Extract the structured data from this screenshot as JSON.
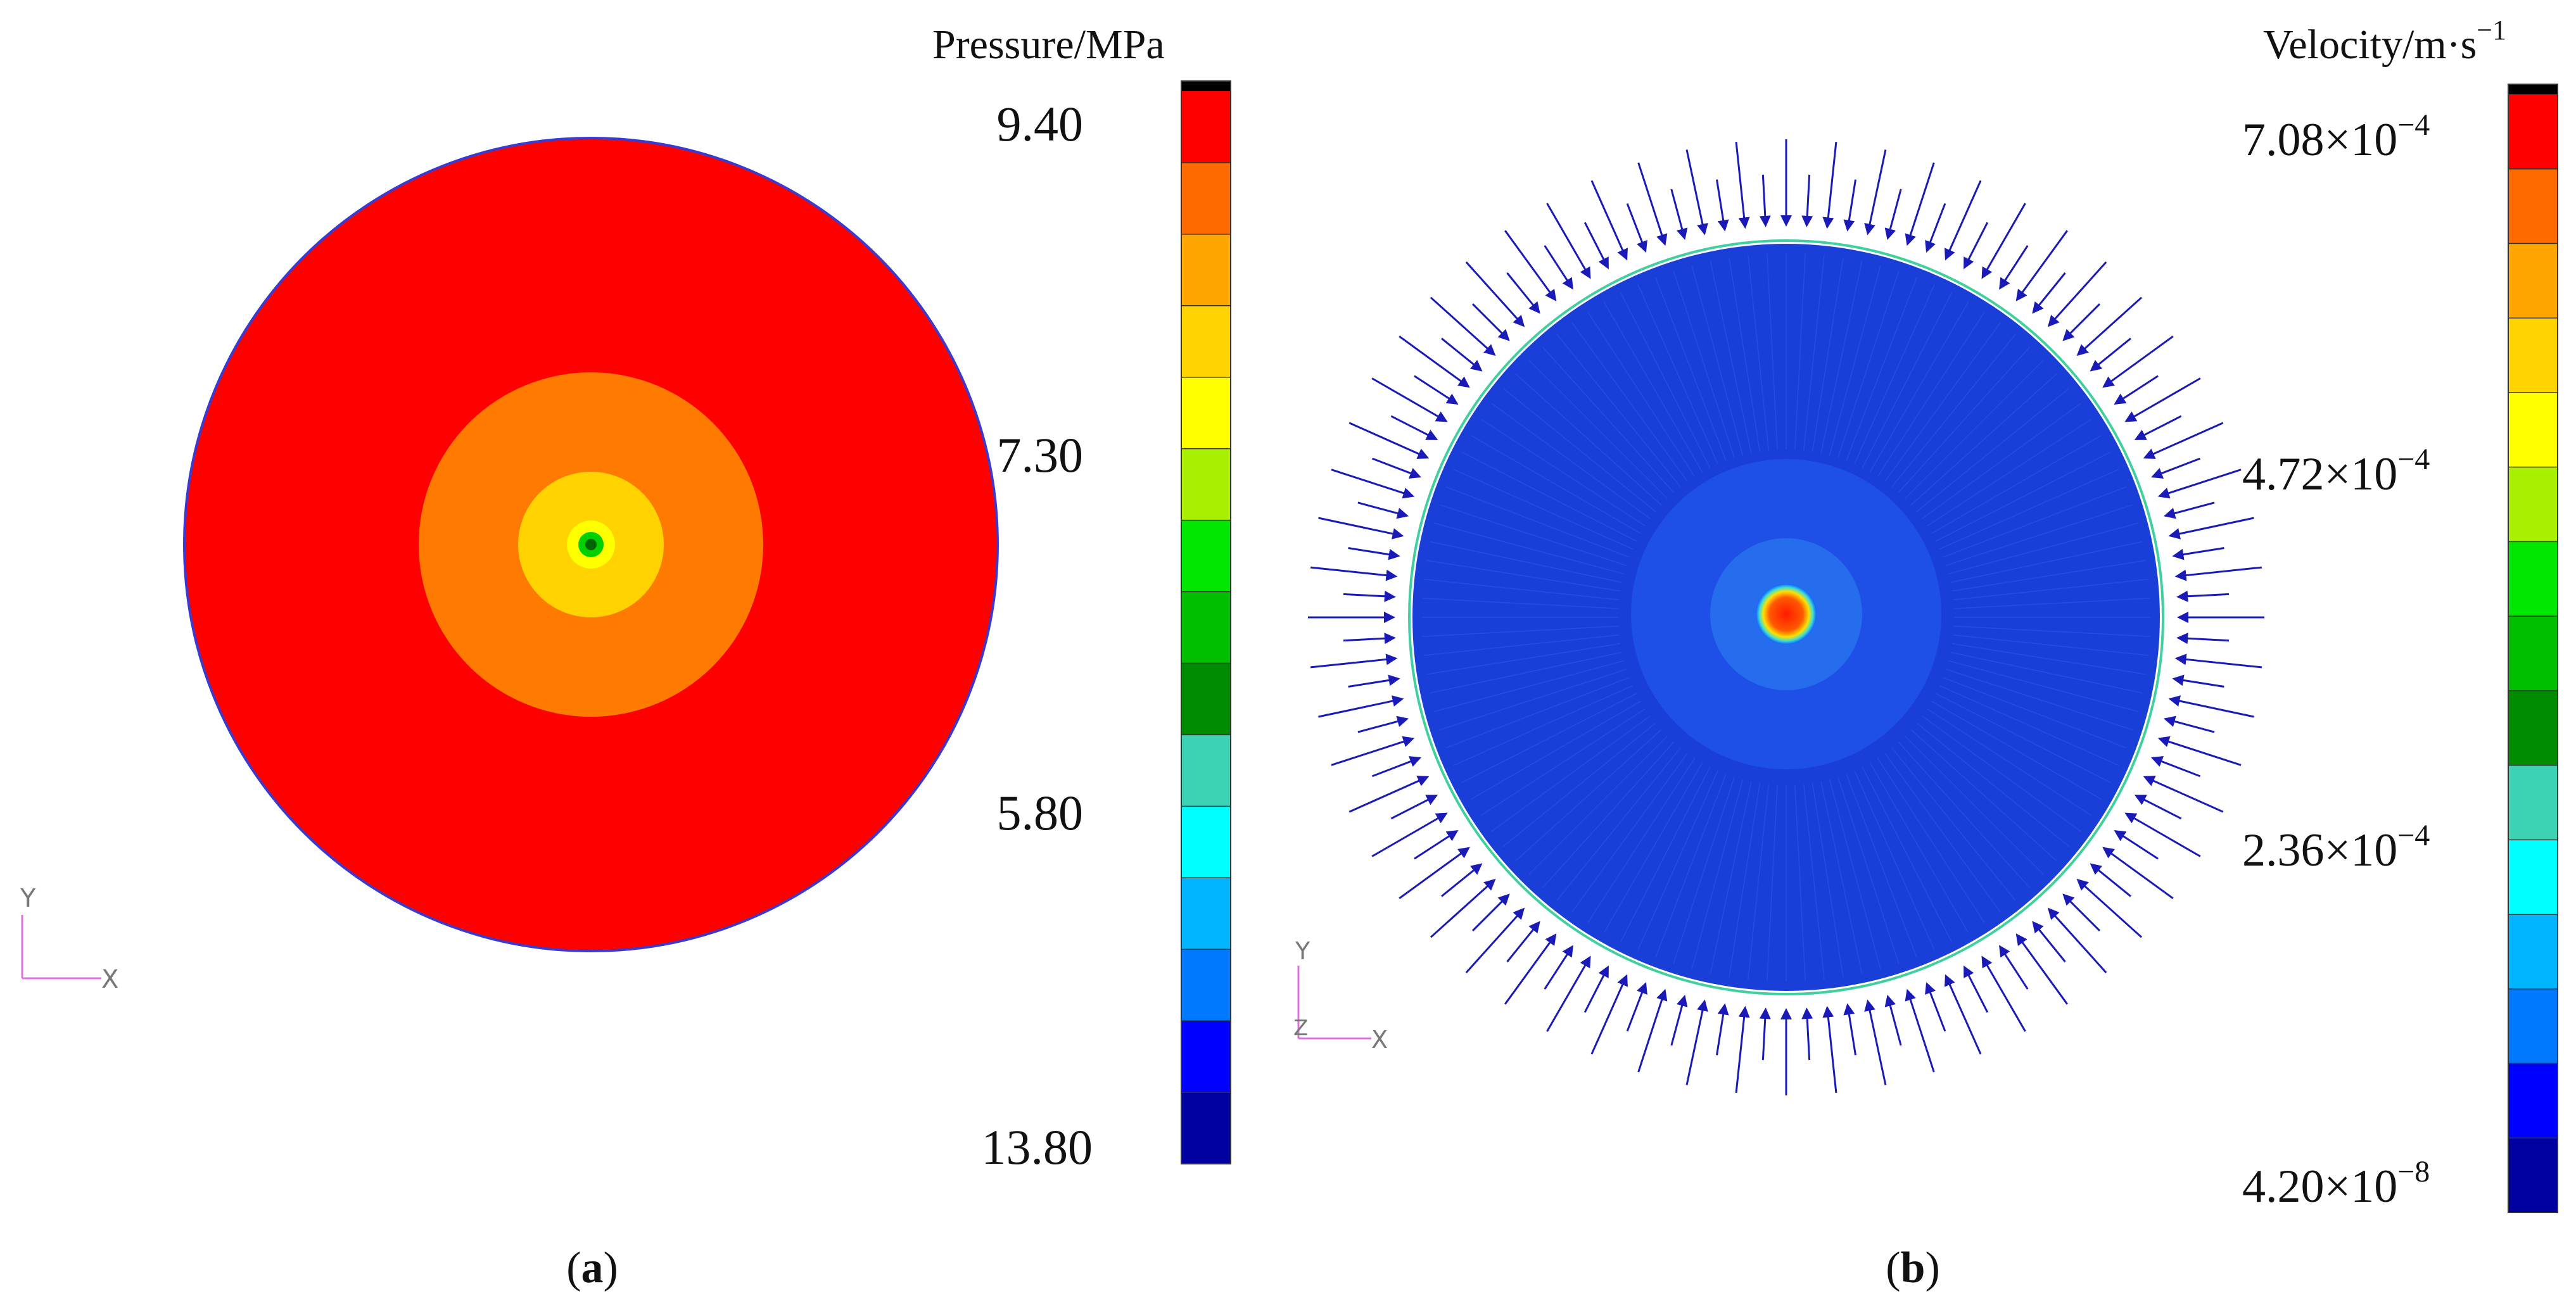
{
  "panel_a": {
    "caption_open": "(",
    "caption_letter": "a",
    "caption_close": ")",
    "legend": {
      "title": "Pressure/MPa",
      "tick_labels": [
        "9.40",
        "7.30",
        "5.80",
        "13.80"
      ],
      "colors": [
        "#000000",
        "#ff0000",
        "#ff6a00",
        "#ffa500",
        "#ffd200",
        "#ffff00",
        "#a8f000",
        "#00e600",
        "#00be00",
        "#008c00",
        "#3cd2b4",
        "#00ffff",
        "#00b4ff",
        "#0078ff",
        "#0000ff",
        "#0000a0"
      ]
    },
    "axes": {
      "y_label": "Y",
      "x_label": "X"
    },
    "contour_rings": [
      {
        "level": "outer",
        "color": "#ff0000"
      },
      {
        "level": "ring-2",
        "color": "#ff7a00"
      },
      {
        "level": "ring-3",
        "color": "#ffd200"
      },
      {
        "level": "ring-4",
        "color": "#ffff00"
      },
      {
        "level": "ring-5",
        "color": "#00d000"
      },
      {
        "level": "core",
        "color": "#006400"
      }
    ],
    "boundary_color": "#3a3ad0"
  },
  "panel_b": {
    "caption_open": "(",
    "caption_letter": "b",
    "caption_close": ")",
    "legend": {
      "title": "Velocity/m·s",
      "title_exponent": "−1",
      "tick_labels": [
        {
          "mantissa": "7.08×10",
          "exponent": "−4"
        },
        {
          "mantissa": "4.72×10",
          "exponent": "−4"
        },
        {
          "mantissa": "2.36×10",
          "exponent": "−4"
        },
        {
          "mantissa": "4.20×10",
          "exponent": "−8"
        }
      ],
      "colors": [
        "#000000",
        "#ff0000",
        "#ff6a00",
        "#ffa500",
        "#ffd200",
        "#ffff00",
        "#a8f000",
        "#00e600",
        "#00be00",
        "#008c00",
        "#3cd2b4",
        "#00ffff",
        "#00b4ff",
        "#0078ff",
        "#0000ff",
        "#0000a0"
      ]
    },
    "axes": {
      "y_label": "Y",
      "x_label": "X",
      "z_label": "Z"
    },
    "arrow_color": "#1a1ab8",
    "boundary_ring_color": "#40d0a0",
    "center_color": "#ff1a00"
  }
}
